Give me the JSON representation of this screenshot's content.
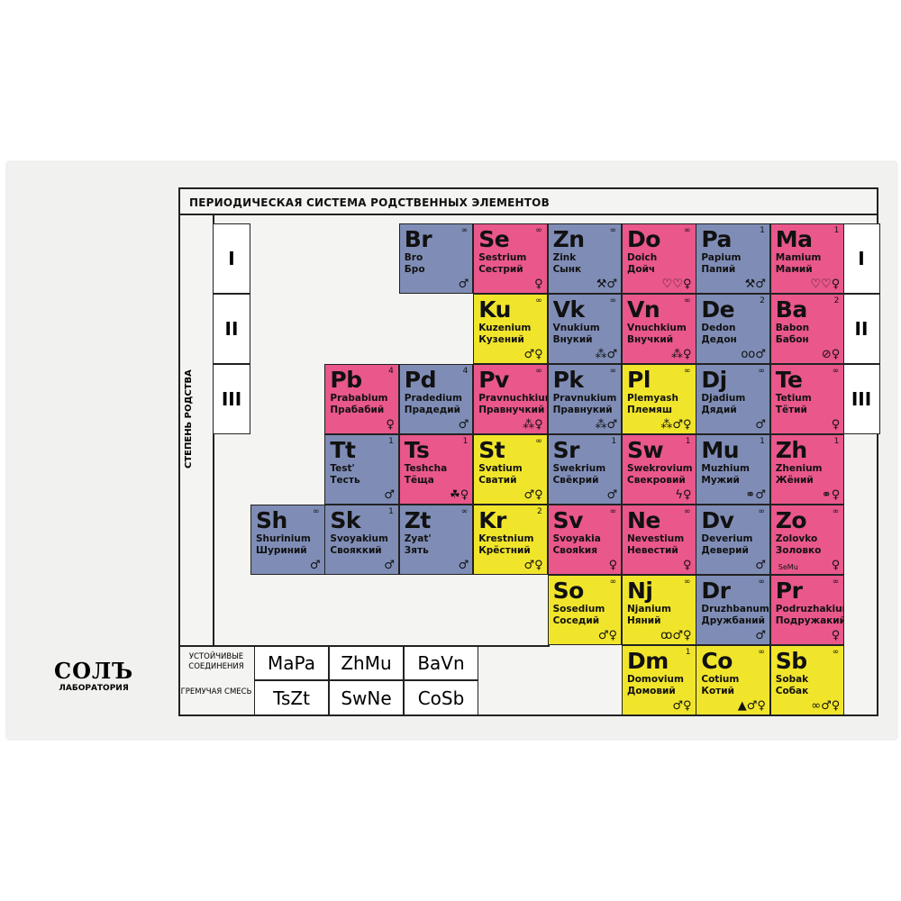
{
  "title": "ПЕРИОДИЧЕСКАЯ СИСТЕМА РОДСТВЕННЫХ ЭЛЕМЕНТОВ",
  "axis_label": "СТЕПЕНЬ РОДСТВА",
  "romans": [
    "I",
    "II",
    "III"
  ],
  "colors": {
    "blue": "#7f8db6",
    "pink": "#e9578b",
    "yellow": "#f1e52c"
  },
  "rows": [
    [
      null,
      null,
      {
        "s": "Br",
        "l": "Bro",
        "c": "Бро",
        "n": "∞",
        "k": "blue",
        "i": "♂"
      },
      {
        "s": "Se",
        "l": "Sestrium",
        "c": "Сестрий",
        "n": "∞",
        "k": "pink",
        "i": "♀"
      },
      {
        "s": "Zn",
        "l": "Zink",
        "c": "Сынк",
        "n": "∞",
        "k": "blue",
        "i": "⚒♂"
      },
      {
        "s": "Do",
        "l": "Doich",
        "c": "Дойч",
        "n": "∞",
        "k": "pink",
        "i": "♡♡♀"
      },
      {
        "s": "Pa",
        "l": "Papium",
        "c": "Папий",
        "n": "1",
        "k": "blue",
        "i": "⚒♂"
      },
      {
        "s": "Ma",
        "l": "Mamium",
        "c": "Мамий",
        "n": "1",
        "k": "pink",
        "i": "♡♡♀"
      }
    ],
    [
      null,
      null,
      null,
      {
        "s": "Ku",
        "l": "Kuzenium",
        "c": "Кузений",
        "n": "∞",
        "k": "yellow",
        "i": "♂♀"
      },
      {
        "s": "Vk",
        "l": "Vnukium",
        "c": "Внукий",
        "n": "∞",
        "k": "blue",
        "i": "⁂♂"
      },
      {
        "s": "Vn",
        "l": "Vnuchkium",
        "c": "Внучкий",
        "n": "∞",
        "k": "pink",
        "i": "⁂♀"
      },
      {
        "s": "De",
        "l": "Dedon",
        "c": "Дедон",
        "n": "2",
        "k": "blue",
        "i": "oo♂"
      },
      {
        "s": "Ba",
        "l": "Babon",
        "c": "Бабон",
        "n": "2",
        "k": "pink",
        "i": "⊘♀"
      }
    ],
    [
      null,
      {
        "s": "Pb",
        "l": "Prababium",
        "c": "Прабабий",
        "n": "4",
        "k": "pink",
        "i": "♀"
      },
      {
        "s": "Pd",
        "l": "Pradedium",
        "c": "Прадедий",
        "n": "4",
        "k": "blue",
        "i": "♂"
      },
      {
        "s": "Pv",
        "l": "Pravnuchkium",
        "c": "Правнучкий",
        "n": "∞",
        "k": "pink",
        "i": "⁂♀"
      },
      {
        "s": "Pk",
        "l": "Pravnukium",
        "c": "Правнукий",
        "n": "∞",
        "k": "blue",
        "i": "⁂♂"
      },
      {
        "s": "Pl",
        "l": "Plemyash",
        "c": "Племяш",
        "n": "∞",
        "k": "yellow",
        "i": "⁂♂♀"
      },
      {
        "s": "Dj",
        "l": "Djadium",
        "c": "Дядий",
        "n": "∞",
        "k": "blue",
        "i": "♂"
      },
      {
        "s": "Te",
        "l": "Tetium",
        "c": "Тётий",
        "n": "∞",
        "k": "pink",
        "i": "♀"
      }
    ],
    [
      null,
      {
        "s": "Tt",
        "l": "Test'",
        "c": "Тесть",
        "n": "1",
        "k": "blue",
        "i": "♂"
      },
      {
        "s": "Ts",
        "l": "Teshcha",
        "c": "Тёща",
        "n": "1",
        "k": "pink",
        "i": "☘♀"
      },
      {
        "s": "St",
        "l": "Svatium",
        "c": "Сватий",
        "n": "∞",
        "k": "yellow",
        "i": "♂♀"
      },
      {
        "s": "Sr",
        "l": "Swekrium",
        "c": "Свёкрий",
        "n": "1",
        "k": "blue",
        "i": "♂"
      },
      {
        "s": "Sw",
        "l": "Swekrovium",
        "c": "Свекровий",
        "n": "1",
        "k": "pink",
        "i": "ϟ♀"
      },
      {
        "s": "Mu",
        "l": "Muzhium",
        "c": "Мужий",
        "n": "1",
        "k": "blue",
        "i": "⚭♂"
      },
      {
        "s": "Zh",
        "l": "Zhenium",
        "c": "Жёний",
        "n": "1",
        "k": "pink",
        "i": "⚭♀"
      }
    ],
    [
      {
        "s": "Sh",
        "l": "Shurinium",
        "c": "Шуриний",
        "n": "∞",
        "k": "blue",
        "i": "♂"
      },
      {
        "s": "Sk",
        "l": "Svoyakium",
        "c": "Свояккий",
        "n": "1",
        "k": "blue",
        "i": "♂"
      },
      {
        "s": "Zt",
        "l": "Zyat'",
        "c": "Зять",
        "n": "∞",
        "k": "blue",
        "i": "♂"
      },
      {
        "s": "Kr",
        "l": "Krestnium",
        "c": "Крёстний",
        "n": "2",
        "k": "yellow",
        "i": "♂♀"
      },
      {
        "s": "Sv",
        "l": "Svoyakia",
        "c": "Свояkия",
        "n": "∞",
        "k": "pink",
        "i": "♀"
      },
      {
        "s": "Ne",
        "l": "Nevestium",
        "c": "Невестий",
        "n": "∞",
        "k": "pink",
        "i": "♀"
      },
      {
        "s": "Dv",
        "l": "Deverium",
        "c": "Деверий",
        "n": "∞",
        "k": "blue",
        "i": "♂"
      },
      {
        "s": "Zo",
        "l": "Zolovko",
        "c": "Золовко",
        "n": "∞",
        "k": "pink",
        "i": "♀",
        "x": "SeMu"
      }
    ],
    [
      null,
      null,
      null,
      null,
      {
        "s": "So",
        "l": "Sosedium",
        "c": "Соседий",
        "n": "∞",
        "k": "yellow",
        "i": "♂♀"
      },
      {
        "s": "Nj",
        "l": "Njanium",
        "c": "Няний",
        "n": "∞",
        "k": "yellow",
        "i": "ꝏ♂♀"
      },
      {
        "s": "Dr",
        "l": "Druzhbanum",
        "c": "Дружбаний",
        "n": "∞",
        "k": "blue",
        "i": "♂"
      },
      {
        "s": "Pr",
        "l": "Podruzhakium",
        "c": "Подружакий",
        "n": "∞",
        "k": "pink",
        "i": "♀"
      }
    ],
    [
      null,
      null,
      null,
      null,
      null,
      {
        "s": "Dm",
        "l": "Domovium",
        "c": "Домовий",
        "n": "1",
        "k": "yellow",
        "i": "♂♀"
      },
      {
        "s": "Co",
        "l": "Cotium",
        "c": "Котий",
        "n": "∞",
        "k": "yellow",
        "i": "▲♂♀"
      },
      {
        "s": "Sb",
        "l": "Sobak",
        "c": "Собак",
        "n": "∞",
        "k": "yellow",
        "i": "∞♂♀"
      }
    ]
  ],
  "compounds": [
    {
      "label": "УСТОЙЧИВЫЕ СОЕДИНЕНИЯ",
      "items": [
        "MaPa",
        "ZhMu",
        "BaVn"
      ]
    },
    {
      "label": "ГРЕМУЧАЯ СМЕСЬ",
      "items": [
        "TsZt",
        "SwNe",
        "CoSb"
      ]
    }
  ],
  "logo": {
    "name": "СОЛЪ",
    "sub": "ЛАБОРАТОРИЯ"
  }
}
